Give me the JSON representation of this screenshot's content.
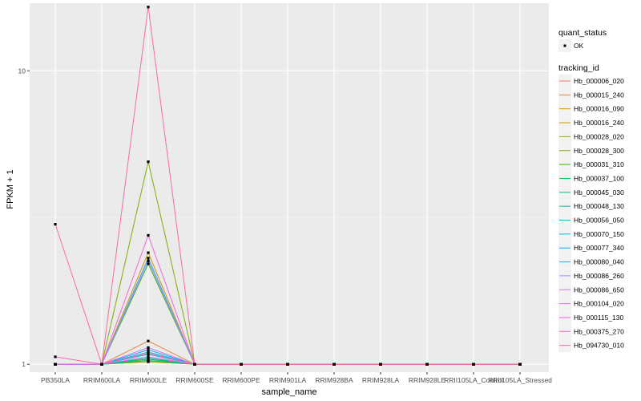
{
  "chart_data": {
    "type": "line",
    "title": "",
    "xlabel": "sample_name",
    "ylabel": "FPKM + 1",
    "y_scale": "log10",
    "ylim": [
      0.94,
      17
    ],
    "y_ticks": [
      1,
      10
    ],
    "y_tick_labels": [
      "1",
      "10"
    ],
    "grid": true,
    "legend_position": "right",
    "categories": [
      "PB350LA",
      "RRIM600LA",
      "RRIM600LE",
      "RRIM600SE",
      "RRIM600PE",
      "RRIM901LA",
      "RRIM928BA",
      "RRIM928LA",
      "RRIM928LE",
      "RRII105LA_Control",
      "RRII105LA_Stressed"
    ],
    "point_status_legend": {
      "title": "quant_status",
      "items": [
        {
          "label": "OK",
          "color": "#000000"
        }
      ]
    },
    "series_legend_title": "tracking_id",
    "series": [
      {
        "name": "Hb_000006_020",
        "color": "#F8766D",
        "values": [
          1,
          1,
          1.02,
          1,
          1,
          1,
          1,
          1,
          1,
          1,
          1
        ]
      },
      {
        "name": "Hb_000015_240",
        "color": "#EA8331",
        "values": [
          1,
          1,
          1.2,
          1,
          1,
          1,
          1,
          1,
          1,
          1,
          1
        ]
      },
      {
        "name": "Hb_000016_090",
        "color": "#D89000",
        "values": [
          1,
          1,
          2.4,
          1,
          1,
          1,
          1,
          1,
          1,
          1,
          1
        ]
      },
      {
        "name": "Hb_000016_240",
        "color": "#C09B00",
        "values": [
          1,
          1,
          1.03,
          1,
          1,
          1,
          1,
          1,
          1,
          1,
          1
        ]
      },
      {
        "name": "Hb_000028_020",
        "color": "#A3A500",
        "values": [
          1,
          1,
          1.02,
          1,
          1,
          1,
          1,
          1,
          1,
          1,
          1
        ]
      },
      {
        "name": "Hb_000028_300",
        "color": "#7CAE00",
        "values": [
          1,
          1,
          4.9,
          1,
          1,
          1,
          1,
          1,
          1,
          1,
          1
        ]
      },
      {
        "name": "Hb_000031_310",
        "color": "#39B600",
        "values": [
          1,
          1,
          2.2,
          1,
          1,
          1,
          1,
          1,
          1,
          1,
          1
        ]
      },
      {
        "name": "Hb_000037_100",
        "color": "#00BB4E",
        "values": [
          1,
          1,
          1.04,
          1,
          1,
          1,
          1,
          1,
          1,
          1,
          1
        ]
      },
      {
        "name": "Hb_000045_030",
        "color": "#00BF7D",
        "values": [
          1,
          1,
          1.03,
          1,
          1,
          1,
          1,
          1,
          1,
          1,
          1
        ]
      },
      {
        "name": "Hb_000048_130",
        "color": "#00C1A3",
        "values": [
          1,
          1,
          1.05,
          1,
          1,
          1,
          1,
          1,
          1,
          1,
          1
        ]
      },
      {
        "name": "Hb_000056_050",
        "color": "#00BFC4",
        "values": [
          1,
          1,
          1.08,
          1,
          1,
          1,
          1,
          1,
          1,
          1,
          1
        ]
      },
      {
        "name": "Hb_000070_150",
        "color": "#00BAE0",
        "values": [
          1,
          1,
          1.1,
          1,
          1,
          1,
          1,
          1,
          1,
          1,
          1
        ]
      },
      {
        "name": "Hb_000077_340",
        "color": "#00B0F6",
        "values": [
          1,
          1,
          1.12,
          1,
          1,
          1,
          1,
          1,
          1,
          1,
          1
        ]
      },
      {
        "name": "Hb_000080_040",
        "color": "#35A2FF",
        "values": [
          1,
          1,
          2.3,
          1,
          1,
          1,
          1,
          1,
          1,
          1,
          1
        ]
      },
      {
        "name": "Hb_000086_260",
        "color": "#9590FF",
        "values": [
          1,
          1,
          2.25,
          1,
          1,
          1,
          1,
          1,
          1,
          1,
          1
        ]
      },
      {
        "name": "Hb_000086_650",
        "color": "#C77CFF",
        "values": [
          1,
          1,
          1.14,
          1,
          1,
          1,
          1,
          1,
          1,
          1,
          1
        ]
      },
      {
        "name": "Hb_000104_020",
        "color": "#E76BF3",
        "values": [
          1,
          1,
          1.06,
          1,
          1,
          1,
          1,
          1,
          1,
          1,
          1
        ]
      },
      {
        "name": "Hb_000115_130",
        "color": "#FA62DB",
        "values": [
          1,
          1,
          2.75,
          1,
          1,
          1,
          1,
          1,
          1,
          1,
          1
        ]
      },
      {
        "name": "Hb_000375_270",
        "color": "#FF62BC",
        "values": [
          1.06,
          1,
          1.09,
          1,
          1,
          1,
          1,
          1,
          1,
          1,
          1
        ]
      },
      {
        "name": "Hb_094730_010",
        "color": "#FF6C91",
        "values": [
          3.0,
          1,
          16.5,
          1,
          1,
          1,
          1,
          1,
          1,
          1,
          1
        ]
      }
    ]
  }
}
